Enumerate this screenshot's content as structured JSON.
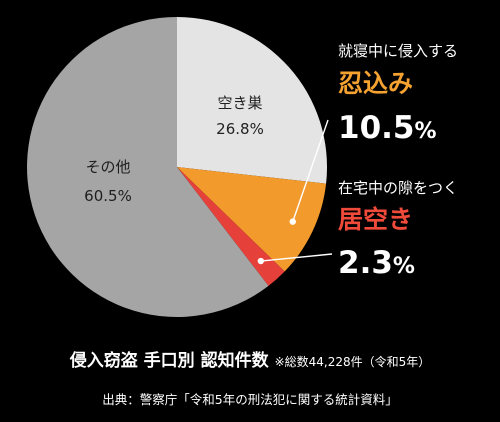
{
  "chart_data": {
    "type": "pie",
    "slices": [
      {
        "key": "akisu",
        "label": "空き巣",
        "value": 26.8,
        "display": "26.8%",
        "color": "#e4e4e4"
      },
      {
        "key": "shinobikomi",
        "label": "忍込み",
        "value": 10.5,
        "display": "10.5%",
        "color": "#f39a2d"
      },
      {
        "key": "iaki",
        "label": "居空き",
        "value": 2.3,
        "display": "2.3%",
        "color": "#e5413a"
      },
      {
        "key": "sonota",
        "label": "その他",
        "value": 60.5,
        "display": "60.5%",
        "color": "#a5a5a5"
      }
    ],
    "title": "侵入窃盗 手口別 認知件数",
    "note": "※総数44,228件（令和5年）",
    "source": "出典：警察庁「令和5年の刑法犯に関する統計資料」",
    "callouts": {
      "shinobikomi": {
        "subtitle": "就寝中に侵入する",
        "title": "忍込み",
        "pct_number": "10.5",
        "pct_sign": "%",
        "title_color": "#f5a231"
      },
      "iaki": {
        "subtitle": "在宅中の隙をつく",
        "title": "居空き",
        "pct_number": "2.3",
        "pct_sign": "%",
        "title_color": "#f04a3a"
      }
    },
    "start_angle_deg": 0,
    "direction": "clockwise"
  }
}
